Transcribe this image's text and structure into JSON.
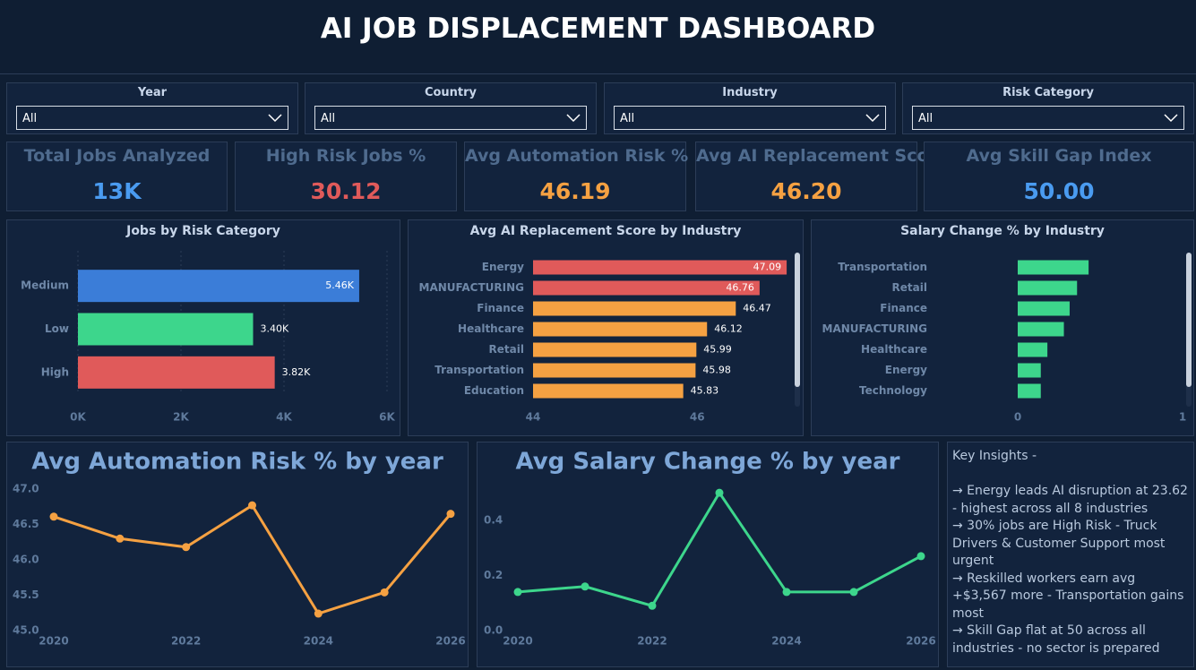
{
  "header": {
    "title": "AI JOB DISPLACEMENT DASHBOARD"
  },
  "filters": [
    {
      "label": "Year",
      "value": "All"
    },
    {
      "label": "Country",
      "value": "All"
    },
    {
      "label": "Industry",
      "value": "All"
    },
    {
      "label": "Risk Category",
      "value": "All"
    }
  ],
  "kpis": [
    {
      "label": "Total Jobs Analyzed",
      "value": "13K",
      "color": "#4a9bf0"
    },
    {
      "label": "High Risk Jobs %",
      "value": "30.12",
      "color": "#e05a5a"
    },
    {
      "label": "Avg Automation Risk %",
      "value": "46.19",
      "color": "#f5a142"
    },
    {
      "label": "Avg AI Replacement Score",
      "value": "46.20",
      "color": "#f5a142"
    },
    {
      "label": "Avg Skill Gap Index",
      "value": "50.00",
      "color": "#4a9bf0"
    }
  ],
  "chart_data": [
    {
      "type": "hbar",
      "title": "Jobs by Risk Category",
      "categories": [
        "Medium",
        "Low",
        "High"
      ],
      "values": [
        5460,
        3400,
        3820
      ],
      "value_labels": [
        "5.46K",
        "3.40K",
        "3.82K"
      ],
      "colors": [
        "#3b7dd8",
        "#3dd68c",
        "#e05a5a"
      ],
      "xlim": [
        0,
        6000
      ],
      "xticks": [
        {
          "value": 0,
          "label": "0K"
        },
        {
          "value": 2000,
          "label": "2K"
        },
        {
          "value": 4000,
          "label": "4K"
        },
        {
          "value": 6000,
          "label": "6K"
        }
      ],
      "grid": true
    },
    {
      "type": "hbar",
      "title": "Avg AI Replacement Score by Industry",
      "categories": [
        "Energy",
        "MANUFACTURING",
        "Finance",
        "Healthcare",
        "Retail",
        "Transportation",
        "Education"
      ],
      "values": [
        47.09,
        46.76,
        46.47,
        46.12,
        45.99,
        45.98,
        45.83
      ],
      "colors": [
        "#e05a5a",
        "#e05a5a",
        "#f5a142",
        "#f5a142",
        "#f5a142",
        "#f5a142",
        "#f5a142"
      ],
      "xlim": [
        44,
        47.1
      ],
      "xticks": [
        44,
        46
      ],
      "grid": false
    },
    {
      "type": "hbar",
      "title": "Salary Change % by Industry",
      "categories": [
        "Transportation",
        "Retail",
        "Finance",
        "MANUFACTURING",
        "Healthcare",
        "Energy",
        "Technology"
      ],
      "values": [
        0.43,
        0.36,
        0.315,
        0.28,
        0.18,
        0.14,
        0.14
      ],
      "colors": [
        "#3dd68c",
        "#3dd68c",
        "#3dd68c",
        "#3dd68c",
        "#3dd68c",
        "#3dd68c",
        "#3dd68c"
      ],
      "xlim": [
        0,
        1
      ],
      "xticks": [
        0,
        1
      ],
      "grid": false
    },
    {
      "type": "line",
      "title": "Avg Automation Risk % by year",
      "x": [
        2020,
        2021,
        2022,
        2023,
        2024,
        2025,
        2026
      ],
      "values": [
        46.61,
        46.3,
        46.18,
        46.77,
        45.24,
        45.54,
        46.65
      ],
      "color": "#f5a142",
      "xlim": [
        2020,
        2026
      ],
      "xticks": [
        2020,
        2022,
        2024,
        2026
      ],
      "ylim": [
        45,
        47
      ],
      "yticks": [
        {
          "value": 45,
          "label": "45.0"
        },
        45.5,
        {
          "value": 46,
          "label": "46.0"
        },
        46.5,
        {
          "value": 47,
          "label": "47.0"
        }
      ]
    },
    {
      "type": "line",
      "title": "Avg Salary Change % by year",
      "x": [
        2020,
        2021,
        2022,
        2023,
        2024,
        2025,
        2026
      ],
      "values": [
        0.14,
        0.16,
        0.09,
        0.5,
        0.14,
        0.14,
        0.27
      ],
      "color": "#3dd68c",
      "xlim": [
        2020,
        2026
      ],
      "xticks": [
        2020,
        2022,
        2024,
        2026
      ],
      "ylim": [
        0,
        0.52
      ],
      "yticks": [
        {
          "value": 0,
          "label": "0.0"
        },
        0.2,
        0.4
      ]
    }
  ],
  "insights": {
    "title": "Key Insights -",
    "lines": [
      "→ Energy leads AI disruption at 23.62 - highest across all 8 industries",
      "→ 30% jobs are High Risk - Truck Drivers & Customer Support most urgent",
      "→ Reskilled workers earn avg +$3,567 more - Transportation gains most",
      "→ Skill Gap flat at 50 across all industries - no sector is prepared"
    ]
  }
}
